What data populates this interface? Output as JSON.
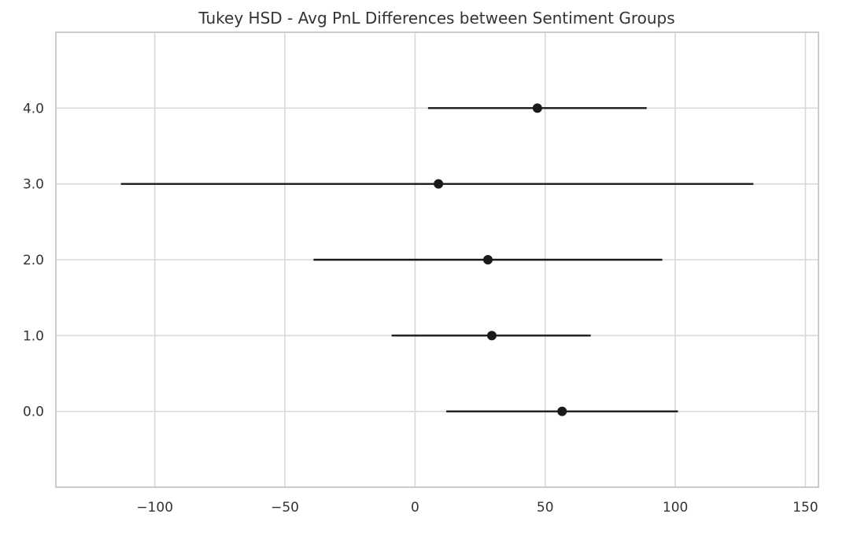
{
  "chart_data": {
    "type": "scatter",
    "title": "Tukey HSD - Avg PnL Differences between Sentiment Groups",
    "xlabel": "",
    "ylabel": "",
    "xlim": [
      -138,
      155
    ],
    "ylim": [
      -1,
      5
    ],
    "x_ticks": [
      -100,
      -50,
      0,
      50,
      100,
      150
    ],
    "x_tick_labels": [
      "−100",
      "−50",
      "0",
      "50",
      "100",
      "150"
    ],
    "y_ticks": [
      0,
      1,
      2,
      3,
      4
    ],
    "y_tick_labels": [
      "0.0",
      "1.0",
      "2.0",
      "3.0",
      "4.0"
    ],
    "grid": true,
    "points": [
      {
        "y": 4,
        "mean": 47,
        "lower": 5,
        "upper": 89
      },
      {
        "y": 3,
        "mean": 9,
        "lower": -113,
        "upper": 130
      },
      {
        "y": 2,
        "mean": 28,
        "lower": -39,
        "upper": 95
      },
      {
        "y": 1,
        "mean": 29.5,
        "lower": -9,
        "upper": 67.5
      },
      {
        "y": 0,
        "mean": 56.5,
        "lower": 12,
        "upper": 101
      }
    ],
    "colors": {
      "marker": "#1a1a1a",
      "grid": "#d9d9d9",
      "frame": "#cccccc",
      "text": "#333333"
    }
  }
}
